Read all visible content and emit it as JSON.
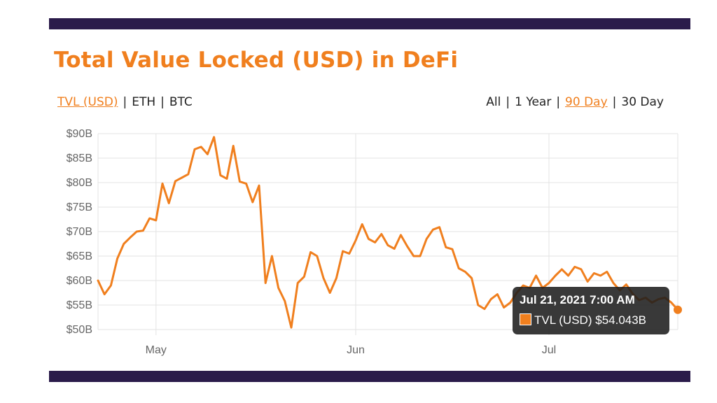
{
  "title": "Total Value Locked (USD) in DeFi",
  "metric_tabs": [
    {
      "label": "TVL (USD)",
      "active": true
    },
    {
      "label": "ETH",
      "active": false
    },
    {
      "label": "BTC",
      "active": false
    }
  ],
  "range_tabs": [
    {
      "label": "All",
      "active": false
    },
    {
      "label": "1 Year",
      "active": false
    },
    {
      "label": "90 Day",
      "active": true
    },
    {
      "label": "30 Day",
      "active": false
    }
  ],
  "separator": "|",
  "colors": {
    "accent": "#f07f1e",
    "banner": "#2a1b4a",
    "grid": "#e3e3e3"
  },
  "tooltip": {
    "title": "Jul 21, 2021 7:00 AM",
    "series_label": "TVL (USD)",
    "value": "$54.043B"
  },
  "chart_data": {
    "type": "line",
    "title": "Total Value Locked (USD) in DeFi",
    "xlabel": "",
    "ylabel": "",
    "ylim": [
      50,
      90
    ],
    "yticks": [
      {
        "value": 50,
        "label": "$50B"
      },
      {
        "value": 55,
        "label": "$55B"
      },
      {
        "value": 60,
        "label": "$60B"
      },
      {
        "value": 65,
        "label": "$65B"
      },
      {
        "value": 70,
        "label": "$70B"
      },
      {
        "value": 75,
        "label": "$75B"
      },
      {
        "value": 80,
        "label": "$80B"
      },
      {
        "value": 85,
        "label": "$85B"
      },
      {
        "value": 90,
        "label": "$90B"
      }
    ],
    "x_start": "2021-04-22",
    "x_end": "2021-07-21",
    "xticks": [
      {
        "date": "2021-05-01",
        "label": "May"
      },
      {
        "date": "2021-06-01",
        "label": "Jun"
      },
      {
        "date": "2021-07-01",
        "label": "Jul"
      }
    ],
    "grid": true,
    "legend": "none",
    "series": [
      {
        "name": "TVL (USD)",
        "color": "#f07f1e",
        "points": [
          [
            "2021-04-22",
            60.0
          ],
          [
            "2021-04-23",
            57.2
          ],
          [
            "2021-04-24",
            59.0
          ],
          [
            "2021-04-25",
            64.5
          ],
          [
            "2021-04-26",
            67.5
          ],
          [
            "2021-04-27",
            68.8
          ],
          [
            "2021-04-28",
            70.0
          ],
          [
            "2021-04-29",
            70.2
          ],
          [
            "2021-04-30",
            72.7
          ],
          [
            "2021-05-01",
            72.3
          ],
          [
            "2021-05-02",
            79.8
          ],
          [
            "2021-05-03",
            75.8
          ],
          [
            "2021-05-04",
            80.3
          ],
          [
            "2021-05-05",
            81.0
          ],
          [
            "2021-05-06",
            81.7
          ],
          [
            "2021-05-07",
            86.8
          ],
          [
            "2021-05-08",
            87.3
          ],
          [
            "2021-05-09",
            85.8
          ],
          [
            "2021-05-10",
            89.3
          ],
          [
            "2021-05-11",
            81.5
          ],
          [
            "2021-05-12",
            80.8
          ],
          [
            "2021-05-13",
            87.5
          ],
          [
            "2021-05-14",
            80.2
          ],
          [
            "2021-05-15",
            79.8
          ],
          [
            "2021-05-16",
            76.0
          ],
          [
            "2021-05-17",
            79.4
          ],
          [
            "2021-05-18",
            59.5
          ],
          [
            "2021-05-19",
            65.0
          ],
          [
            "2021-05-20",
            58.5
          ],
          [
            "2021-05-21",
            55.8
          ],
          [
            "2021-05-22",
            50.4
          ],
          [
            "2021-05-23",
            59.5
          ],
          [
            "2021-05-24",
            60.8
          ],
          [
            "2021-05-25",
            65.8
          ],
          [
            "2021-05-26",
            65.0
          ],
          [
            "2021-05-27",
            60.5
          ],
          [
            "2021-05-28",
            57.5
          ],
          [
            "2021-05-29",
            60.5
          ],
          [
            "2021-05-30",
            66.0
          ],
          [
            "2021-05-31",
            65.5
          ],
          [
            "2021-06-01",
            68.2
          ],
          [
            "2021-06-02",
            71.5
          ],
          [
            "2021-06-03",
            68.5
          ],
          [
            "2021-06-04",
            67.8
          ],
          [
            "2021-06-05",
            69.5
          ],
          [
            "2021-06-06",
            67.2
          ],
          [
            "2021-06-07",
            66.5
          ],
          [
            "2021-06-08",
            69.3
          ],
          [
            "2021-06-09",
            67.0
          ],
          [
            "2021-06-10",
            65.0
          ],
          [
            "2021-06-11",
            65.0
          ],
          [
            "2021-06-12",
            68.5
          ],
          [
            "2021-06-13",
            70.4
          ],
          [
            "2021-06-14",
            70.9
          ],
          [
            "2021-06-15",
            66.8
          ],
          [
            "2021-06-16",
            66.4
          ],
          [
            "2021-06-17",
            62.5
          ],
          [
            "2021-06-18",
            61.8
          ],
          [
            "2021-06-19",
            60.5
          ],
          [
            "2021-06-20",
            55.0
          ],
          [
            "2021-06-21",
            54.2
          ],
          [
            "2021-06-22",
            56.2
          ],
          [
            "2021-06-23",
            57.2
          ],
          [
            "2021-06-24",
            54.5
          ],
          [
            "2021-06-25",
            55.5
          ],
          [
            "2021-06-26",
            57.5
          ],
          [
            "2021-06-27",
            59.0
          ],
          [
            "2021-06-28",
            58.5
          ],
          [
            "2021-06-29",
            61.0
          ],
          [
            "2021-06-30",
            58.5
          ],
          [
            "2021-07-01",
            59.5
          ],
          [
            "2021-07-02",
            61.0
          ],
          [
            "2021-07-03",
            62.3
          ],
          [
            "2021-07-04",
            61.0
          ],
          [
            "2021-07-05",
            62.8
          ],
          [
            "2021-07-06",
            62.3
          ],
          [
            "2021-07-07",
            59.8
          ],
          [
            "2021-07-08",
            61.5
          ],
          [
            "2021-07-09",
            61.0
          ],
          [
            "2021-07-10",
            61.8
          ],
          [
            "2021-07-11",
            59.5
          ],
          [
            "2021-07-12",
            58.0
          ],
          [
            "2021-07-13",
            59.2
          ],
          [
            "2021-07-14",
            57.3
          ],
          [
            "2021-07-15",
            56.0
          ],
          [
            "2021-07-16",
            56.5
          ],
          [
            "2021-07-17",
            55.5
          ],
          [
            "2021-07-18",
            56.2
          ],
          [
            "2021-07-19",
            56.5
          ],
          [
            "2021-07-20",
            55.5
          ],
          [
            "2021-07-21",
            54.043
          ]
        ]
      }
    ]
  }
}
